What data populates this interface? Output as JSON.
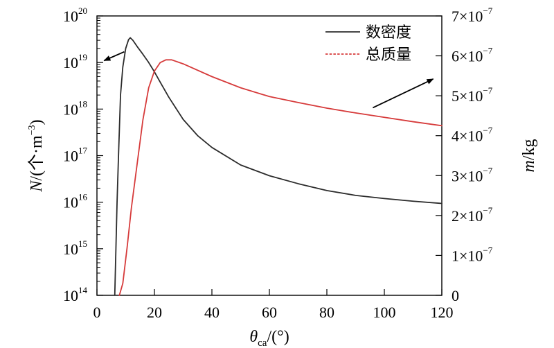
{
  "chart_data": {
    "type": "line",
    "x_axis": {
      "label_symbol": "θ",
      "label_subscript": "ca",
      "label_unit": "/(°)",
      "range": [
        0,
        120
      ],
      "ticks": [
        0,
        20,
        40,
        60,
        80,
        100,
        120
      ]
    },
    "y_axis_left": {
      "label_symbol": "N",
      "label_unit_prefix": "/(个·m",
      "label_unit_exp": "−3",
      "label_unit_suffix": ")",
      "scale": "log",
      "range": [
        100000000000000.0,
        1e+20
      ],
      "tick_base": "10",
      "tick_exponents": [
        "14",
        "15",
        "16",
        "17",
        "18",
        "19",
        "20"
      ]
    },
    "y_axis_right": {
      "label_symbol": "m",
      "label_unit": "/kg",
      "scale": "linear",
      "range": [
        0,
        7e-07
      ],
      "zero_label": "0",
      "tick_mantissas": [
        "1",
        "2",
        "3",
        "4",
        "5",
        "6",
        "7"
      ],
      "tick_times": "×10",
      "tick_exponent": "−7"
    },
    "legend": {
      "placement": "top-right",
      "entries": [
        {
          "name": "数密度",
          "color": "#2b2b2b",
          "dash": "solid"
        },
        {
          "name": "总质量",
          "color": "#d63a3a",
          "dash": "dashed"
        }
      ]
    },
    "series": [
      {
        "name": "数密度",
        "axis": "left",
        "color": "#2b2b2b",
        "points": [
          [
            6.2,
            100000000000000.0
          ],
          [
            6.6,
            1000000000000000.0
          ],
          [
            7.0,
            1e+16
          ],
          [
            7.5,
            1e+17
          ],
          [
            8.2,
            2e+18
          ],
          [
            9.0,
            8e+18
          ],
          [
            10.0,
            2e+19
          ],
          [
            11.0,
            3.1e+19
          ],
          [
            11.6,
            3.4e+19
          ],
          [
            12.5,
            3e+19
          ],
          [
            14,
            2.2e+19
          ],
          [
            16,
            1.5e+19
          ],
          [
            18,
            1e+19
          ],
          [
            20,
            6.3e+18
          ],
          [
            22,
            3.8e+18
          ],
          [
            25,
            1.8e+18
          ],
          [
            30,
            6e+17
          ],
          [
            35,
            2.7e+17
          ],
          [
            40,
            1.5e+17
          ],
          [
            50,
            6.3e+16
          ],
          [
            60,
            3.7e+16
          ],
          [
            70,
            2.5e+16
          ],
          [
            80,
            1.78e+16
          ],
          [
            90,
            1.4e+16
          ],
          [
            100,
            1.2e+16
          ],
          [
            110,
            1.05e+16
          ],
          [
            120,
            9400000000000000.0
          ]
        ]
      },
      {
        "name": "总质量",
        "axis": "right",
        "color": "#d63a3a",
        "points": [
          [
            7.8,
            0
          ],
          [
            9.0,
            3e-08
          ],
          [
            10.5,
            1.2e-07
          ],
          [
            12,
            2.2e-07
          ],
          [
            14,
            3.3e-07
          ],
          [
            16,
            4.4e-07
          ],
          [
            18,
            5.2e-07
          ],
          [
            20,
            5.62e-07
          ],
          [
            22,
            5.83e-07
          ],
          [
            24,
            5.9e-07
          ],
          [
            26,
            5.9e-07
          ],
          [
            30,
            5.8e-07
          ],
          [
            40,
            5.48e-07
          ],
          [
            50,
            5.2e-07
          ],
          [
            60,
            4.98e-07
          ],
          [
            70,
            4.83e-07
          ],
          [
            80,
            4.69e-07
          ],
          [
            90,
            4.57e-07
          ],
          [
            100,
            4.46e-07
          ],
          [
            110,
            4.35e-07
          ],
          [
            120,
            4.25e-07
          ]
        ]
      }
    ],
    "annotations": [
      {
        "type": "arrow",
        "points_to": "left-axis",
        "from_x": 9.5,
        "from_y_left": 1.7e+19,
        "to_x": 2.5,
        "to_y_left": 1.1e+19
      },
      {
        "type": "arrow",
        "points_to": "right-axis",
        "from_x": 96,
        "from_y_right": 4.7e-07,
        "to_x": 117,
        "to_y_right": 5.42e-07
      }
    ],
    "grid": false
  }
}
